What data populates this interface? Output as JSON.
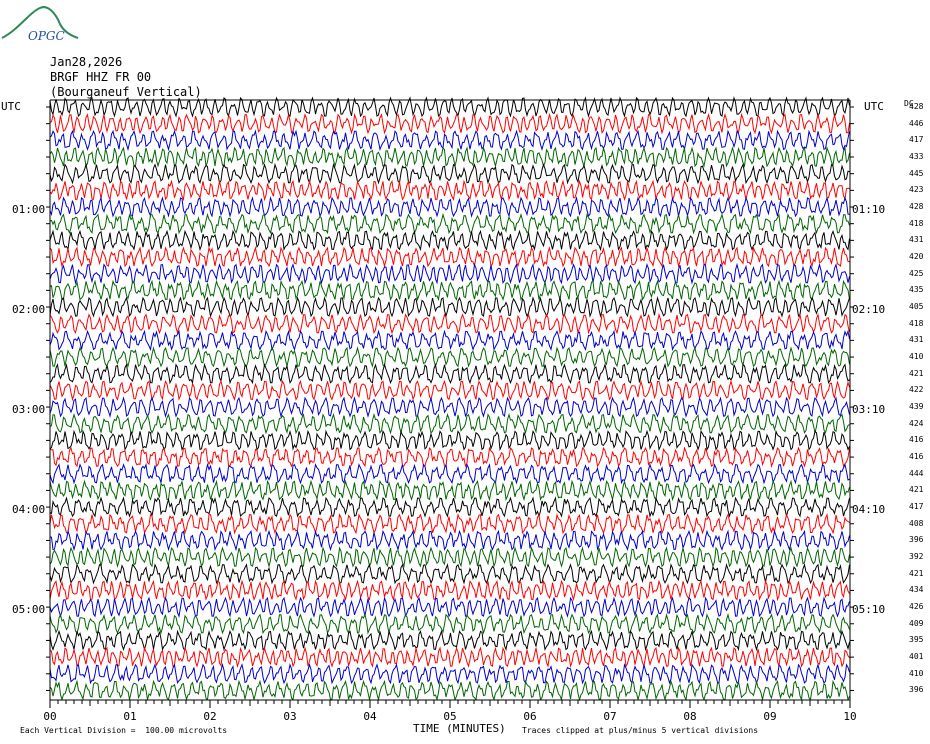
{
  "header": {
    "logo_text": "OPGC",
    "date": "Jan28,2026",
    "station": "BRGF HHZ FR 00",
    "location": "(Bourganeuf Vertical)"
  },
  "axes": {
    "left_title": "UTC",
    "right_title": "UTC",
    "dc_title": "DC",
    "xlabel": "TIME (MINUTES)"
  },
  "footer": {
    "scale_note": "Each Vertical Division =  100.00 microvolts",
    "clip_note": "Traces clipped at plus/minus 5 vertical divisions"
  },
  "colors": {
    "trace_cycle": [
      "#000000",
      "#ff0000",
      "#0000cc",
      "#006600"
    ]
  },
  "chart_data": {
    "type": "line",
    "title": "BRGF HHZ FR 00 (Bourganeuf Vertical)",
    "xlabel": "TIME (MINUTES)",
    "xlim": [
      0,
      10
    ],
    "x_ticks": [
      "00",
      "01",
      "02",
      "03",
      "04",
      "05",
      "06",
      "07",
      "08",
      "09",
      "10"
    ],
    "traces_per_hour": 6,
    "minutes_per_trace": 10,
    "trace_count": 36,
    "left_hour_labels": [
      "01:00",
      "02:00",
      "03:00",
      "04:00",
      "05:00"
    ],
    "right_hour_labels": [
      "01:10",
      "02:10",
      "03:10",
      "04:10",
      "05:10"
    ],
    "dc_offsets": [
      428,
      446,
      417,
      433,
      445,
      423,
      428,
      418,
      431,
      420,
      425,
      435,
      405,
      418,
      431,
      410,
      421,
      422,
      439,
      424,
      416,
      416,
      444,
      421,
      417,
      408,
      396,
      392,
      421,
      434,
      426,
      409,
      395,
      401,
      410,
      396
    ],
    "clip_divisions": 5,
    "vertical_division_microvolts": 100.0
  }
}
